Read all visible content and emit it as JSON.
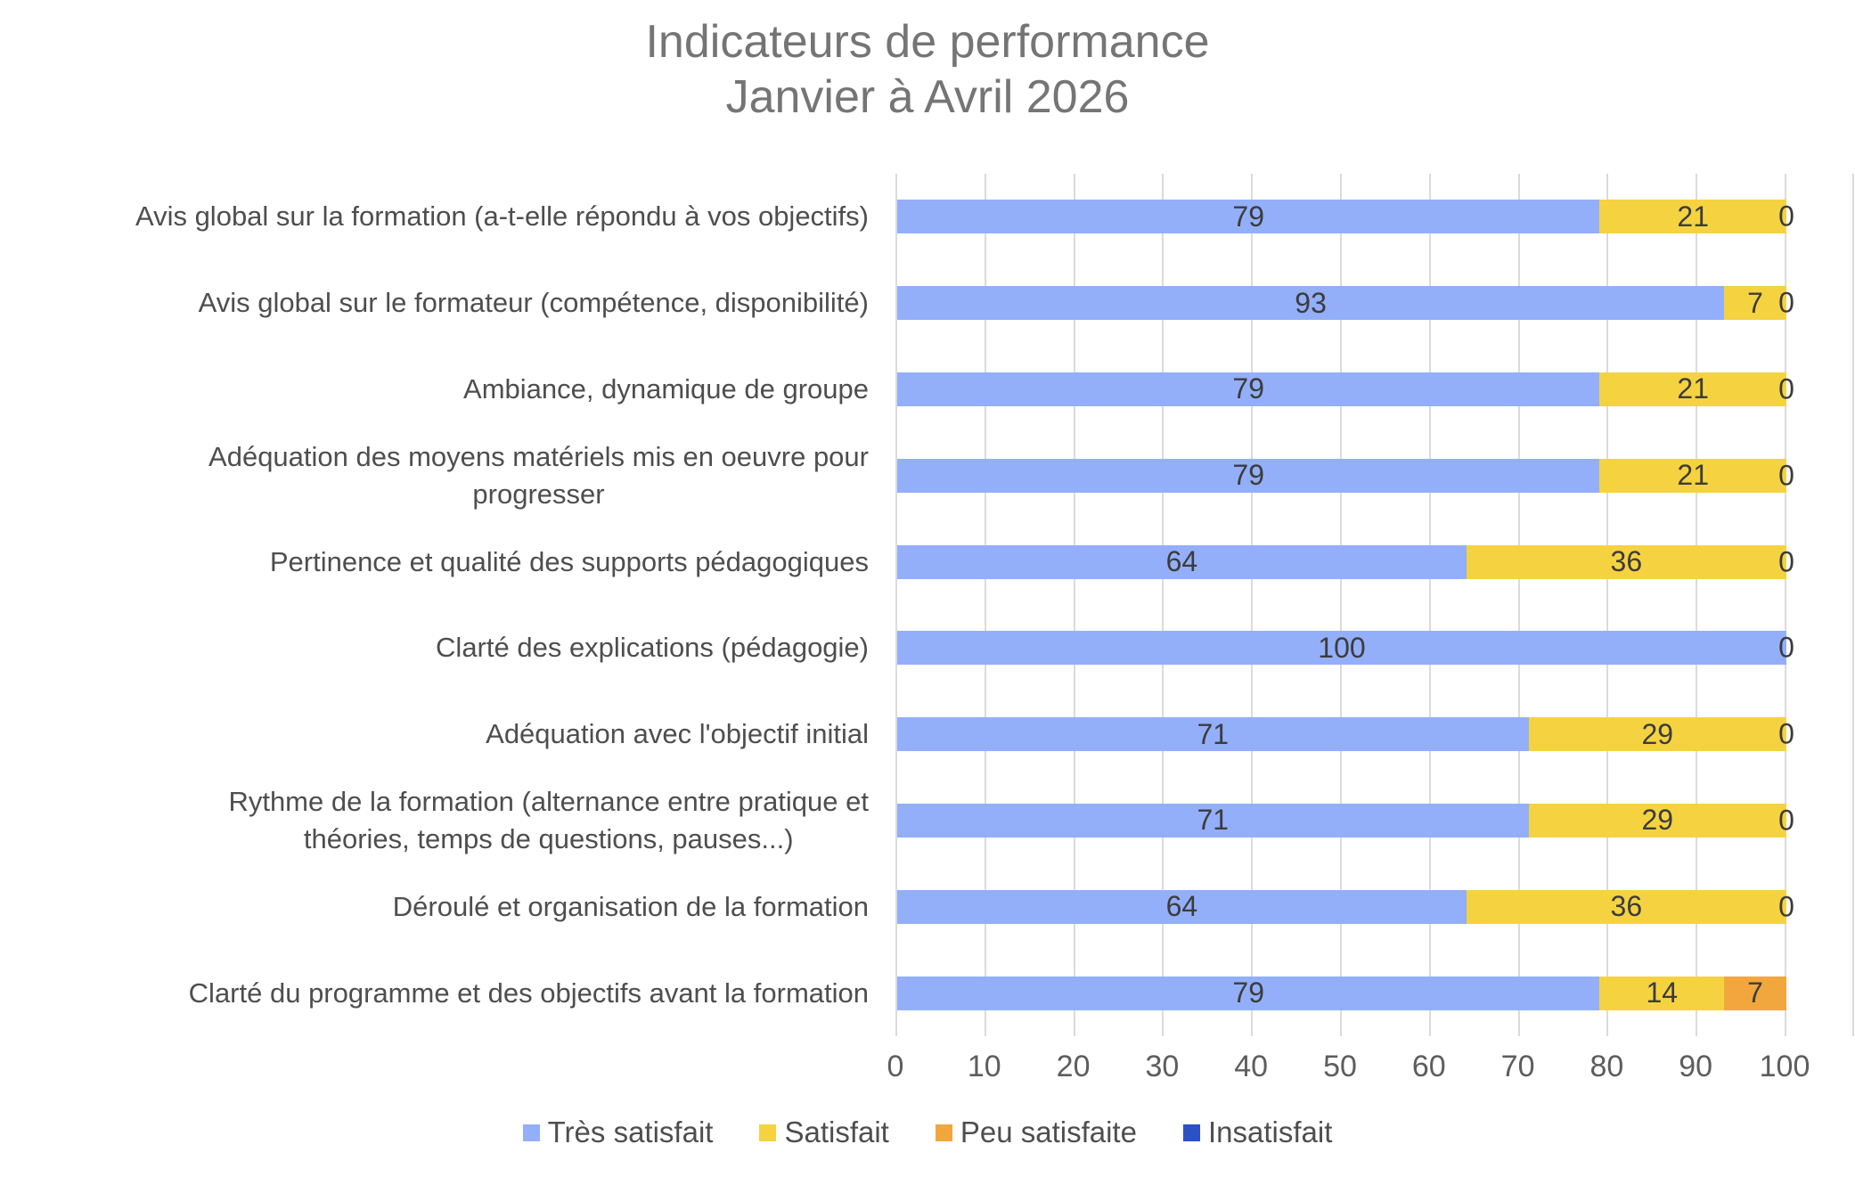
{
  "chart_data": {
    "type": "bar",
    "orientation": "horizontal-stacked",
    "title": "Indicateurs de performance",
    "subtitle": "Janvier à Avril 2026",
    "categories": [
      "Avis global sur la formation (a-t-elle répondu à vos objectifs)",
      "Avis global sur le formateur (compétence, disponibilité)",
      "Ambiance, dynamique de groupe",
      "Adéquation des moyens matériels mis en oeuvre pour\nprogresser",
      "Pertinence et qualité des supports pédagogiques",
      "Clarté des explications (pédagogie)",
      "Adéquation avec l'objectif initial",
      "Rythme de la formation (alternance entre pratique et\nthéories, temps de questions, pauses...)",
      "Déroulé et organisation de la formation",
      "Clarté du programme et des objectifs avant la formation"
    ],
    "series": [
      {
        "name": "Très satisfait",
        "color": "#93affa",
        "values": [
          79,
          93,
          79,
          79,
          64,
          100,
          71,
          71,
          64,
          79
        ]
      },
      {
        "name": "Satisfait",
        "color": "#f5d340",
        "values": [
          21,
          7,
          21,
          21,
          36,
          0,
          29,
          29,
          36,
          14
        ]
      },
      {
        "name": "Peu satisfaite",
        "color": "#f2a73e",
        "values": [
          0,
          0,
          0,
          0,
          0,
          0,
          0,
          0,
          0,
          7
        ]
      },
      {
        "name": "Insatisfait",
        "color": "#2b51c4",
        "values": [
          0,
          0,
          0,
          0,
          0,
          0,
          0,
          0,
          0,
          0
        ]
      }
    ],
    "zero_labels_at_bar_end": [
      true,
      true,
      true,
      true,
      true,
      true,
      true,
      true,
      true,
      false
    ],
    "x_ticks": [
      "0",
      "10",
      "20",
      "30",
      "40",
      "50",
      "60",
      "70",
      "80",
      "90",
      "100"
    ],
    "xlim": [
      0,
      100
    ],
    "grid": true,
    "legend_position": "bottom",
    "title_color": "#757575",
    "gridline_color": "#dbdbdb",
    "data_label_color": "#3c3c3c"
  }
}
